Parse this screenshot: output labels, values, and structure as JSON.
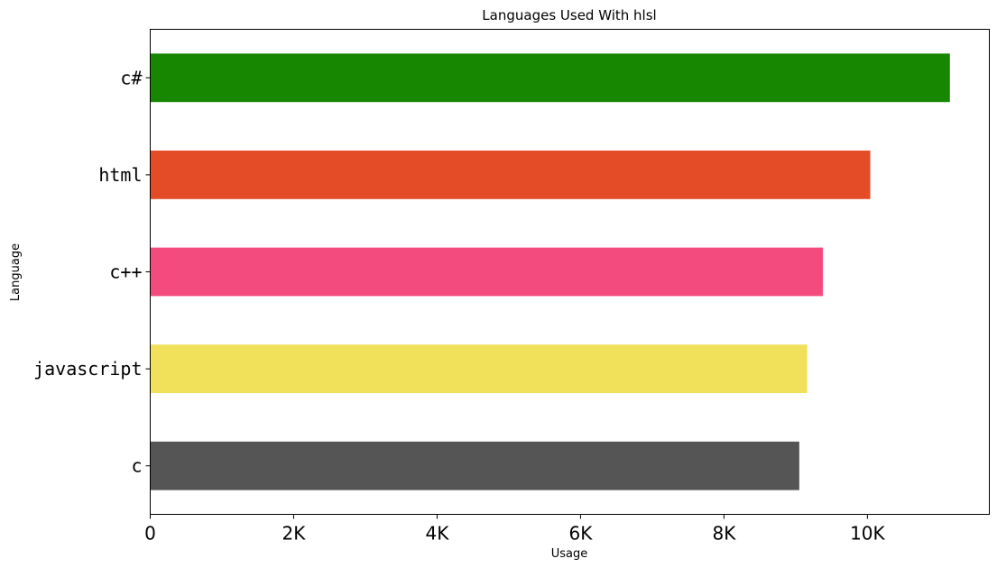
{
  "chart_data": {
    "type": "bar",
    "orientation": "horizontal",
    "title": "Languages Used With hlsl",
    "xlabel": "Usage",
    "ylabel": "Language",
    "categories": [
      "c#",
      "html",
      "c++",
      "javascript",
      "c"
    ],
    "values": [
      11150,
      10040,
      9380,
      9160,
      9050
    ],
    "colors": [
      "#178600",
      "#e34c26",
      "#f34b7d",
      "#f1e05a",
      "#555555"
    ],
    "xlim": [
      0,
      11700
    ],
    "xticks": [
      0,
      2000,
      4000,
      6000,
      8000,
      10000
    ],
    "xtick_labels": [
      "0",
      "2K",
      "4K",
      "6K",
      "8K",
      "10K"
    ],
    "grid": false,
    "legend": "none"
  }
}
